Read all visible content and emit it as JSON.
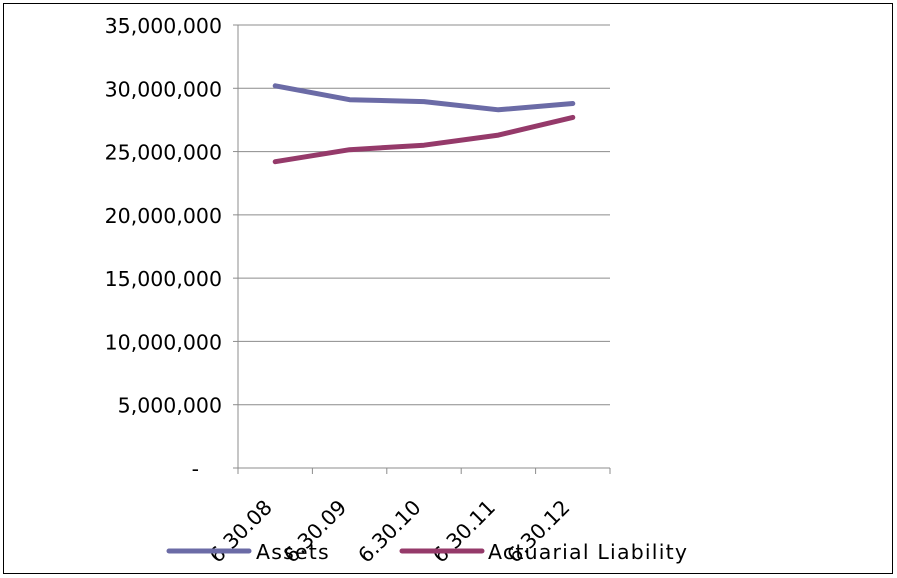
{
  "chart_data": {
    "type": "line",
    "title": "",
    "xlabel": "",
    "ylabel": "",
    "categories": [
      "6.30.08",
      "6.30.09",
      "6.30.10",
      "6.30.11",
      "6.30.12"
    ],
    "ylim": [
      0,
      35000000
    ],
    "y_ticks": [
      {
        "value": 35000000,
        "label": "35,000,000"
      },
      {
        "value": 30000000,
        "label": "30,000,000"
      },
      {
        "value": 25000000,
        "label": "25,000,000"
      },
      {
        "value": 20000000,
        "label": "20,000,000"
      },
      {
        "value": 15000000,
        "label": "15,000,000"
      },
      {
        "value": 10000000,
        "label": "10,000,000"
      },
      {
        "value": 5000000,
        "label": "5,000,000"
      },
      {
        "value": 0,
        "label": "-"
      }
    ],
    "grid": true,
    "legend_position": "bottom",
    "series": [
      {
        "name": "Assets",
        "color": "#6B6BA6",
        "values": [
          30200000,
          29100000,
          28950000,
          28300000,
          28800000
        ]
      },
      {
        "name": "Actuarial Liability",
        "color": "#953A6A",
        "values": [
          24200000,
          25150000,
          25500000,
          26300000,
          27700000
        ]
      }
    ]
  }
}
